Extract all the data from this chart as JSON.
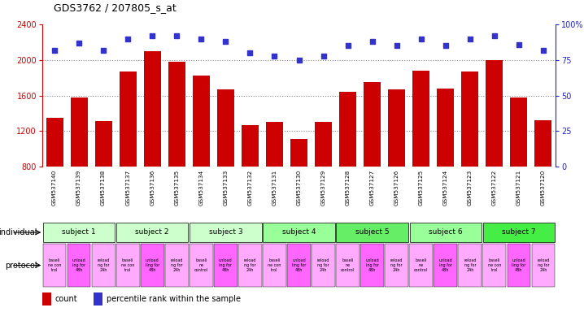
{
  "title": "GDS3762 / 207805_s_at",
  "samples": [
    "GSM537140",
    "GSM537139",
    "GSM537138",
    "GSM537137",
    "GSM537136",
    "GSM537135",
    "GSM537134",
    "GSM537133",
    "GSM537132",
    "GSM537131",
    "GSM537130",
    "GSM537129",
    "GSM537128",
    "GSM537127",
    "GSM537126",
    "GSM537125",
    "GSM537124",
    "GSM537123",
    "GSM537122",
    "GSM537121",
    "GSM537120"
  ],
  "counts": [
    1350,
    1580,
    1310,
    1870,
    2100,
    1980,
    1820,
    1670,
    1270,
    1300,
    1110,
    1300,
    1640,
    1750,
    1670,
    1880,
    1680,
    1870,
    2000,
    1580,
    1320
  ],
  "percentiles": [
    82,
    87,
    82,
    90,
    92,
    92,
    90,
    88,
    80,
    78,
    75,
    78,
    85,
    88,
    85,
    90,
    85,
    90,
    92,
    86,
    82
  ],
  "ylim_left": [
    800,
    2400
  ],
  "ylim_right": [
    0,
    100
  ],
  "yticks_left": [
    800,
    1200,
    1600,
    2000,
    2400
  ],
  "yticks_right": [
    0,
    25,
    50,
    75,
    100
  ],
  "bar_color": "#cc0000",
  "dot_color": "#3333cc",
  "subjects": [
    {
      "label": "subject 1",
      "start": 0,
      "end": 3,
      "color": "#ccffcc"
    },
    {
      "label": "subject 2",
      "start": 3,
      "end": 6,
      "color": "#ccffcc"
    },
    {
      "label": "subject 3",
      "start": 6,
      "end": 9,
      "color": "#ccffcc"
    },
    {
      "label": "subject 4",
      "start": 9,
      "end": 12,
      "color": "#99ff99"
    },
    {
      "label": "subject 5",
      "start": 12,
      "end": 15,
      "color": "#66ee66"
    },
    {
      "label": "subject 6",
      "start": 15,
      "end": 18,
      "color": "#99ff99"
    },
    {
      "label": "subject 7",
      "start": 18,
      "end": 21,
      "color": "#44ee44"
    }
  ],
  "protocols": [
    {
      "label": "baseli\nne con\ntrol",
      "color": "#ffaaff"
    },
    {
      "label": "unload\ning for\n48h",
      "color": "#ff66ff"
    },
    {
      "label": "reload\nng for\n24h",
      "color": "#ffaaff"
    },
    {
      "label": "baseli\nne con\ntrol",
      "color": "#ffaaff"
    },
    {
      "label": "unload\nling for\n48h",
      "color": "#ff66ff"
    },
    {
      "label": "reload\nng for\n24h",
      "color": "#ffaaff"
    },
    {
      "label": "baseli\nne\ncontrol",
      "color": "#ffaaff"
    },
    {
      "label": "unload\ning for\n48h",
      "color": "#ff66ff"
    },
    {
      "label": "reload\nng for\n24h",
      "color": "#ffaaff"
    },
    {
      "label": "baseli\nne con\ntrol",
      "color": "#ffaaff"
    },
    {
      "label": "unload\nling for\n48h",
      "color": "#ff66ff"
    },
    {
      "label": "reload\nng for\n24h",
      "color": "#ffaaff"
    },
    {
      "label": "baseli\nne\ncontrol",
      "color": "#ffaaff"
    },
    {
      "label": "unload\ning for\n48h",
      "color": "#ff66ff"
    },
    {
      "label": "reload\nng for\n24h",
      "color": "#ffaaff"
    },
    {
      "label": "baseli\nne\ncontrol",
      "color": "#ffaaff"
    },
    {
      "label": "unload\ning for\n48h",
      "color": "#ff66ff"
    },
    {
      "label": "reload\nng for\n24h",
      "color": "#ffaaff"
    },
    {
      "label": "baseli\nne con\ntrol",
      "color": "#ffaaff"
    },
    {
      "label": "unload\nling for\n48h",
      "color": "#ff66ff"
    },
    {
      "label": "reload\nng for\n24h",
      "color": "#ffaaff"
    }
  ],
  "grid_color": "#888888",
  "axis_color_left": "#cc0000",
  "axis_color_right": "#2222cc",
  "bg_color": "#ffffff",
  "tick_area_color": "#cccccc"
}
